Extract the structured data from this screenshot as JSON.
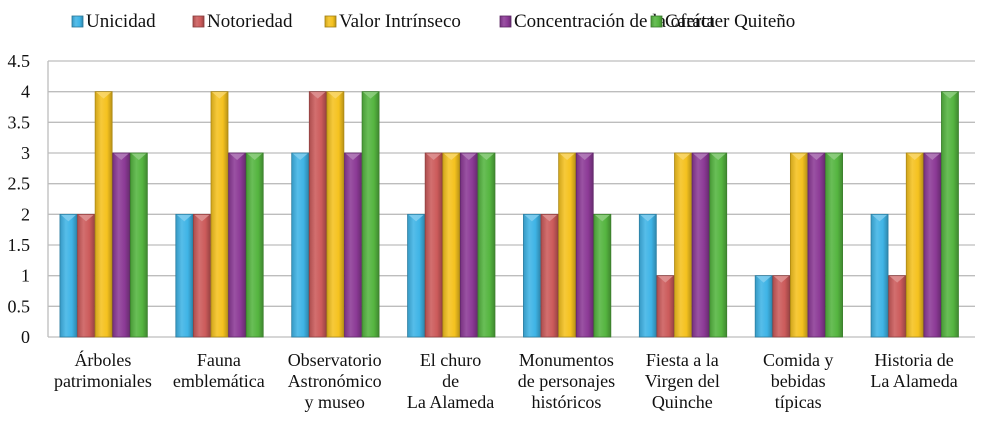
{
  "chart_data": {
    "type": "bar",
    "title": "",
    "xlabel": "",
    "ylabel": "",
    "ylim": [
      0,
      4.5
    ],
    "yticks": [
      "0",
      "0.5",
      "1",
      "1.5",
      "2",
      "2.5",
      "3",
      "3.5",
      "4",
      "4.5"
    ],
    "grid": true,
    "legend_position": "top",
    "categories": [
      [
        "Árboles",
        "patrimoniales"
      ],
      [
        "Fauna",
        "emblemática"
      ],
      [
        "Observatorio",
        "Astronómico",
        "y museo"
      ],
      [
        "El churo",
        "de",
        "La Alameda"
      ],
      [
        "Monumentos",
        "de personajes",
        "históricos"
      ],
      [
        "Fiesta a la",
        "Virgen del",
        "Quinche"
      ],
      [
        "Comida y",
        "bebidas",
        "típicas"
      ],
      [
        "Historia de",
        "La Alameda"
      ]
    ],
    "series": [
      {
        "name": "Unicidad",
        "color": "#3fb4e6",
        "values": [
          2,
          2,
          3,
          2,
          2,
          2,
          1,
          2
        ]
      },
      {
        "name": "Notoriedad",
        "color": "#cc5b5b",
        "values": [
          2,
          2,
          4,
          3,
          2,
          1,
          1,
          1
        ]
      },
      {
        "name": "Valor Intrínseco",
        "color": "#f5c21f",
        "values": [
          4,
          4,
          4,
          3,
          3,
          3,
          3,
          3
        ]
      },
      {
        "name": "Concentración de la oferta",
        "color": "#8c3a96",
        "values": [
          3,
          3,
          3,
          3,
          3,
          3,
          3,
          3
        ]
      },
      {
        "name": "Carácter Quiteño",
        "color": "#55b540",
        "values": [
          3,
          3,
          4,
          3,
          2,
          3,
          3,
          4
        ]
      }
    ]
  }
}
